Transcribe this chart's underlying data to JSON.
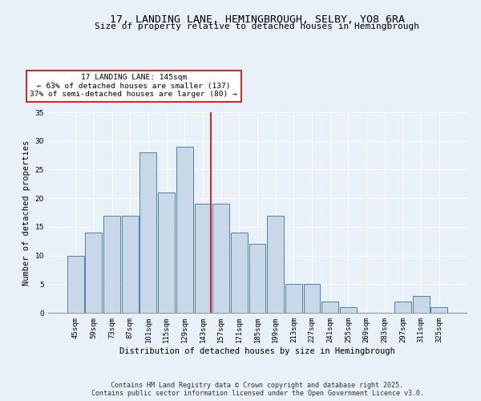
{
  "title_line1": "17, LANDING LANE, HEMINGBROUGH, SELBY, YO8 6RA",
  "title_line2": "Size of property relative to detached houses in Hemingbrough",
  "xlabel": "Distribution of detached houses by size in Hemingbrough",
  "ylabel": "Number of detached properties",
  "bar_values": [
    10,
    14,
    17,
    17,
    28,
    21,
    29,
    19,
    19,
    14,
    12,
    17,
    5,
    5,
    2,
    1,
    0,
    0,
    2,
    3,
    1
  ],
  "bin_labels": [
    "45sqm",
    "59sqm",
    "73sqm",
    "87sqm",
    "101sqm",
    "115sqm",
    "129sqm",
    "143sqm",
    "157sqm",
    "171sqm",
    "185sqm",
    "199sqm",
    "213sqm",
    "227sqm",
    "241sqm",
    "255sqm",
    "269sqm",
    "283sqm",
    "297sqm",
    "311sqm",
    "325sqm"
  ],
  "bar_color": "#c8d8e8",
  "bar_edge_color": "#5080a8",
  "highlight_bin_index": 7,
  "vline_label": "17 LANDING LANE: 145sqm",
  "annotation_line2": "← 63% of detached houses are smaller (137)",
  "annotation_line3": "37% of semi-detached houses are larger (80) →",
  "vline_color": "#cc0000",
  "annotation_box_edge": "#cc0000",
  "annotation_box_bg": "#ffffff",
  "ylim": [
    0,
    35
  ],
  "yticks": [
    0,
    5,
    10,
    15,
    20,
    25,
    30,
    35
  ],
  "bg_color": "#e8f0f8",
  "grid_color": "#ffffff",
  "footer_line1": "Contains HM Land Registry data © Crown copyright and database right 2025.",
  "footer_line2": "Contains public sector information licensed under the Open Government Licence v3.0.",
  "title_fontsize": 9.5,
  "subtitle_fontsize": 8.0,
  "axis_label_fontsize": 7.5,
  "tick_fontsize": 6.5,
  "annotation_fontsize": 6.8,
  "footer_fontsize": 6.0
}
